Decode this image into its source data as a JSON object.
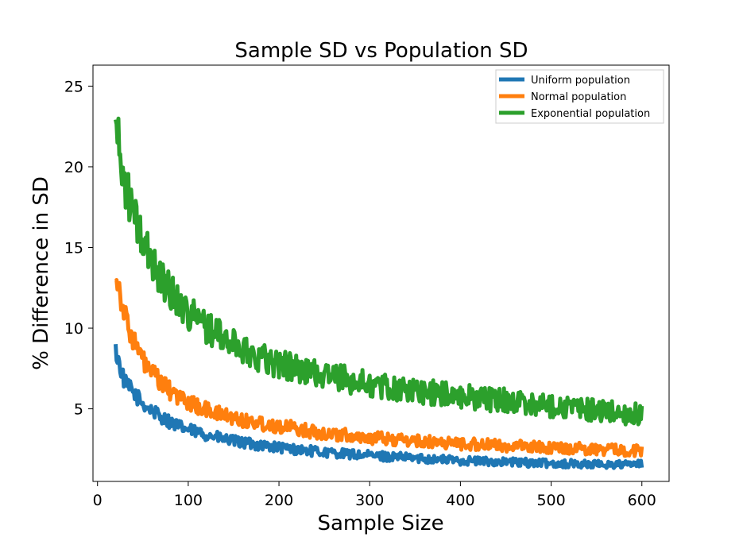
{
  "chart_data": {
    "type": "line",
    "title": "Sample SD vs Population SD",
    "xlabel": "Sample Size",
    "ylabel": "% Difference in SD",
    "xlim": [
      -5,
      630
    ],
    "ylim": [
      0.5,
      26.3
    ],
    "xticks": [
      0,
      100,
      200,
      300,
      400,
      500,
      600
    ],
    "yticks": [
      5,
      10,
      15,
      20,
      25
    ],
    "grid": false,
    "legend_position": "top-right",
    "x_step": 1,
    "series": [
      {
        "name": "Uniform population",
        "color": "#1f77b4",
        "x": [
          20,
          30,
          40,
          50,
          60,
          70,
          80,
          90,
          100,
          120,
          140,
          160,
          180,
          200,
          225,
          250,
          275,
          300,
          350,
          400,
          450,
          500,
          550,
          600
        ],
        "y": [
          8.6,
          6.6,
          6.0,
          5.3,
          4.9,
          4.5,
          4.2,
          3.9,
          3.7,
          3.4,
          3.1,
          2.9,
          2.75,
          2.6,
          2.45,
          2.3,
          2.2,
          2.1,
          1.95,
          1.8,
          1.7,
          1.62,
          1.55,
          1.55
        ],
        "noise": 0.25
      },
      {
        "name": "Normal population",
        "color": "#ff7f0e",
        "x": [
          20,
          30,
          40,
          50,
          60,
          70,
          80,
          90,
          100,
          120,
          140,
          160,
          180,
          200,
          225,
          250,
          275,
          300,
          350,
          400,
          450,
          500,
          550,
          600
        ],
        "y": [
          13.5,
          10.8,
          9.2,
          8.0,
          7.2,
          6.6,
          6.1,
          5.7,
          5.4,
          4.9,
          4.6,
          4.3,
          4.1,
          3.95,
          3.7,
          3.5,
          3.35,
          3.2,
          3.0,
          2.85,
          2.7,
          2.6,
          2.5,
          2.4
        ],
        "noise": 0.35
      },
      {
        "name": "Exponential population",
        "color": "#2ca02c",
        "x": [
          20,
          25,
          30,
          40,
          50,
          60,
          70,
          80,
          90,
          100,
          120,
          140,
          160,
          180,
          200,
          225,
          250,
          275,
          300,
          350,
          400,
          450,
          500,
          550,
          600
        ],
        "y": [
          23.0,
          20.5,
          19.0,
          17.0,
          15.3,
          14.2,
          13.2,
          12.3,
          11.6,
          11.0,
          10.1,
          9.3,
          8.7,
          8.2,
          7.8,
          7.4,
          7.1,
          6.8,
          6.5,
          6.1,
          5.8,
          5.5,
          5.2,
          4.9,
          4.6
        ],
        "noise": 0.7
      }
    ]
  }
}
